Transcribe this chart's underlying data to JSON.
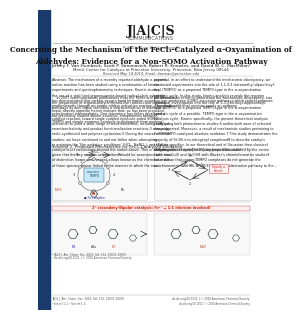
{
  "page_background": "#ffffff",
  "left_bar_color": "#1a3a6b",
  "left_bar_width": 0.055,
  "journal_name": "J|A|C|S",
  "journal_subtitle": "COMMUNICATIONS",
  "journal_name_color": "#1a1a1a",
  "received_line": "Received May 14 2010; Email: davmac@princeton.edu",
  "title_line1": "Concerning the Mechanism of the FeCl₃-Catalyzed α-Oxyamination of",
  "title_line2": "Aldehydes: Evidence for a Non-SOMO Activation Pathway",
  "authors": "Jeffrey F. Van Humbeck, Scott P. Simonovich, Robert R. Knowles, and David W. C. MacMillan*",
  "affiliation": "Merck Center for Catalysis at Princeton University, Princeton, New Jersey 08544",
  "footer_left": "JACS J. Am. Chem. Soc. 2010, Vol. 132, 10033–10035",
  "footer_right": "dx.doi.org/10.1021 | © 2010 American Chemical Society",
  "text_color": "#000000",
  "gray_text": "#555555",
  "highlight_box_color": "#c8e6f5",
  "highlight_box2_color": "#ff6666"
}
